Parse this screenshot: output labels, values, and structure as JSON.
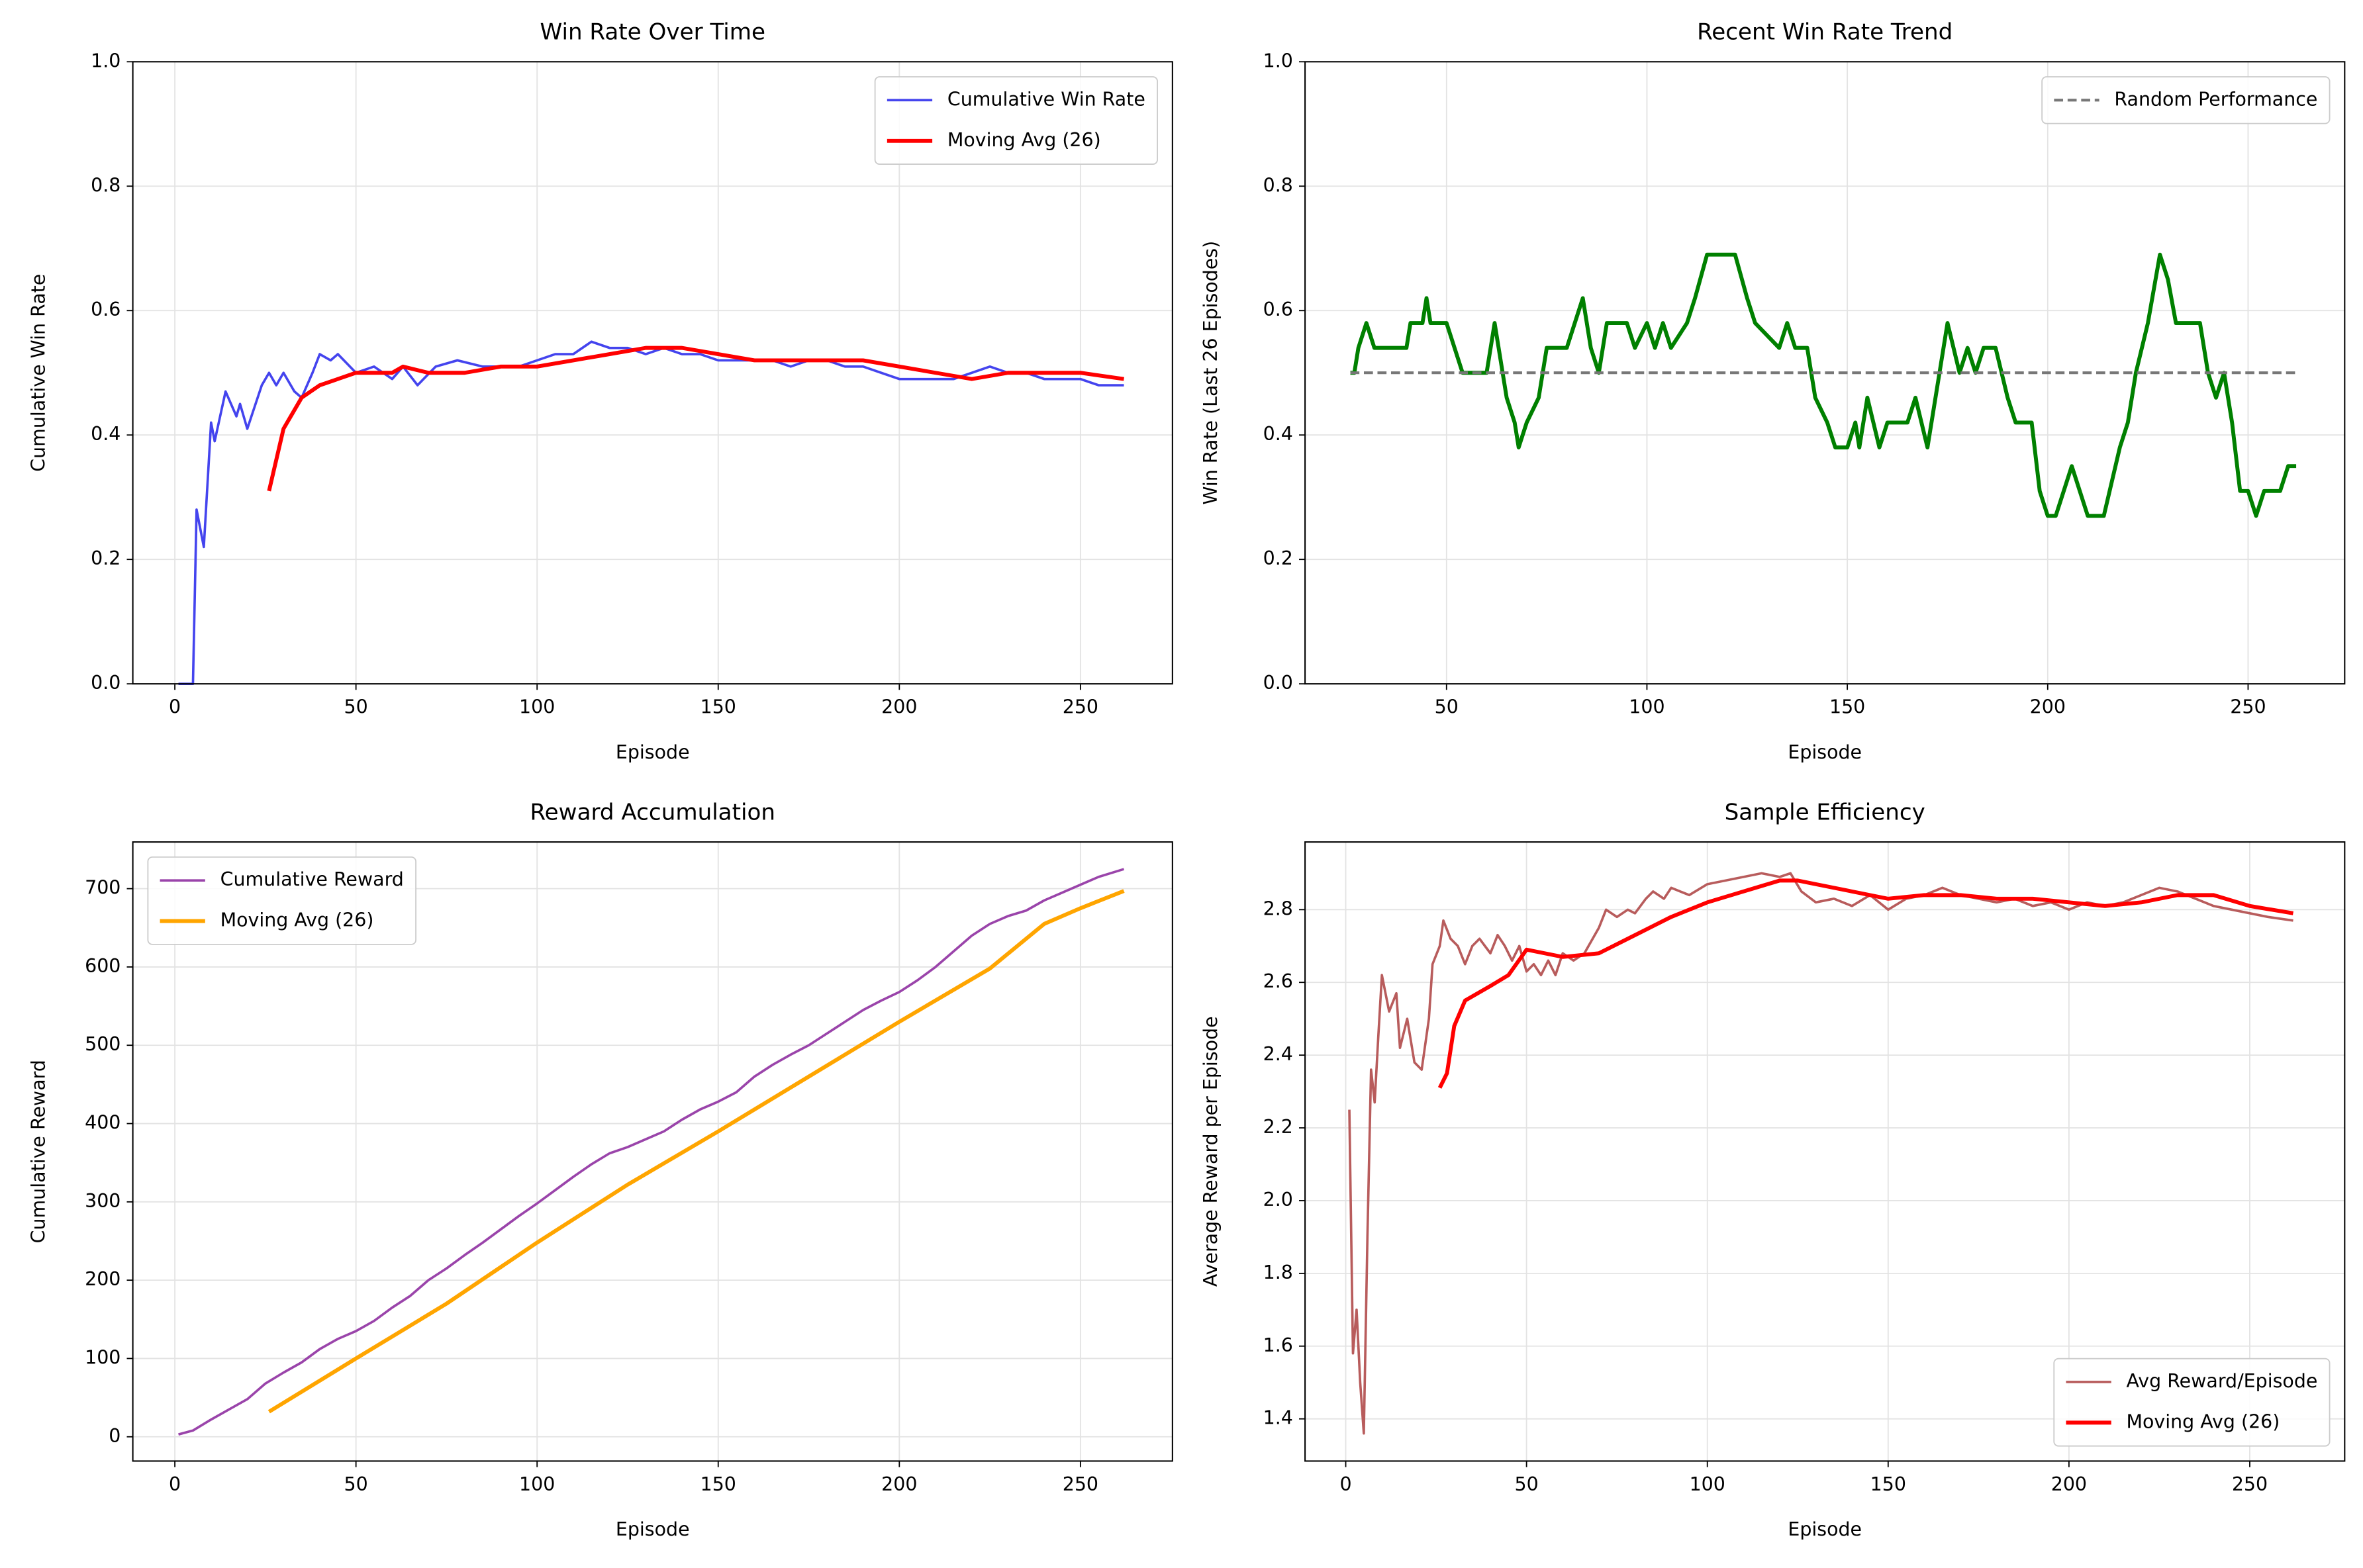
{
  "chart_data": [
    {
      "type": "line",
      "title": "Win Rate Over Time",
      "xlabel": "Episode",
      "ylabel": "Cumulative Win Rate",
      "xlim": [
        -11.6,
        275.4
      ],
      "ylim": [
        0,
        1
      ],
      "xticks": [
        0,
        50,
        100,
        150,
        200,
        250
      ],
      "yticks": [
        {
          "value": 0,
          "label": "0.0"
        },
        0.2,
        0.4,
        0.6,
        0.8,
        {
          "value": 1,
          "label": "1.0"
        }
      ],
      "grid": true,
      "legend": "upper right",
      "series": [
        {
          "name": "Cumulative Win Rate",
          "color": "#4444ee",
          "width": 1.6,
          "x": [
            1,
            5,
            6,
            8,
            10,
            11,
            14,
            17,
            18,
            20,
            24,
            26,
            28,
            30,
            33,
            35,
            38,
            40,
            43,
            45,
            50,
            55,
            60,
            63,
            67,
            72,
            78,
            85,
            90,
            95,
            100,
            105,
            110,
            115,
            120,
            125,
            130,
            135,
            140,
            145,
            150,
            155,
            160,
            165,
            170,
            175,
            180,
            185,
            190,
            195,
            200,
            205,
            210,
            215,
            220,
            225,
            230,
            235,
            240,
            245,
            250,
            255,
            262
          ],
          "values": [
            0,
            0,
            0.28,
            0.22,
            0.42,
            0.39,
            0.47,
            0.43,
            0.45,
            0.41,
            0.48,
            0.5,
            0.48,
            0.5,
            0.47,
            0.46,
            0.5,
            0.53,
            0.52,
            0.53,
            0.5,
            0.51,
            0.49,
            0.51,
            0.48,
            0.51,
            0.52,
            0.51,
            0.51,
            0.51,
            0.52,
            0.53,
            0.53,
            0.55,
            0.54,
            0.54,
            0.53,
            0.54,
            0.53,
            0.53,
            0.52,
            0.52,
            0.52,
            0.52,
            0.51,
            0.52,
            0.52,
            0.51,
            0.51,
            0.5,
            0.49,
            0.49,
            0.49,
            0.49,
            0.5,
            0.51,
            0.5,
            0.5,
            0.49,
            0.49,
            0.49,
            0.48,
            0.48
          ]
        },
        {
          "name": "Moving Avg (26)",
          "color": "#ff0000",
          "width": 2.6,
          "x": [
            26,
            30,
            35,
            40,
            45,
            50,
            55,
            60,
            63,
            70,
            80,
            90,
            100,
            110,
            120,
            130,
            140,
            150,
            160,
            170,
            180,
            190,
            200,
            210,
            220,
            230,
            240,
            250,
            262
          ],
          "values": [
            0.31,
            0.41,
            0.46,
            0.48,
            0.49,
            0.5,
            0.5,
            0.5,
            0.51,
            0.5,
            0.5,
            0.51,
            0.51,
            0.52,
            0.53,
            0.54,
            0.54,
            0.53,
            0.52,
            0.52,
            0.52,
            0.52,
            0.51,
            0.5,
            0.49,
            0.5,
            0.5,
            0.5,
            0.49
          ]
        }
      ]
    },
    {
      "type": "line",
      "title": "Recent Win Rate Trend",
      "xlabel": "Episode",
      "ylabel": "Win Rate (Last 26 Episodes)",
      "xlim": [
        14.7,
        274.1
      ],
      "ylim": [
        0,
        1
      ],
      "xticks": [
        50,
        100,
        150,
        200,
        250
      ],
      "yticks": [
        {
          "value": 0,
          "label": "0.0"
        },
        0.2,
        0.4,
        0.6,
        0.8,
        {
          "value": 1,
          "label": "1.0"
        }
      ],
      "grid": true,
      "legend": "upper right",
      "series": [
        {
          "color": "#008000",
          "width": 2.6,
          "x": [
            26,
            27,
            28,
            30,
            32,
            40,
            41,
            44,
            45,
            46,
            50,
            52,
            54,
            60,
            62,
            65,
            67,
            68,
            70,
            73,
            75,
            80,
            82,
            84,
            86,
            88,
            90,
            95,
            97,
            100,
            102,
            104,
            106,
            110,
            112,
            115,
            122,
            125,
            127,
            133,
            135,
            137,
            140,
            142,
            145,
            147,
            150,
            152,
            153,
            155,
            158,
            160,
            165,
            167,
            170,
            172,
            175,
            178,
            180,
            182,
            184,
            187,
            190,
            192,
            196,
            198,
            200,
            202,
            204,
            206,
            208,
            210,
            214,
            218,
            220,
            222,
            225,
            228,
            230,
            232,
            238,
            240,
            242,
            244,
            246,
            248,
            250,
            252,
            254,
            258,
            260,
            262
          ],
          "values": [
            0.5,
            0.5,
            0.54,
            0.58,
            0.54,
            0.54,
            0.58,
            0.58,
            0.62,
            0.58,
            0.58,
            0.54,
            0.5,
            0.5,
            0.58,
            0.46,
            0.42,
            0.38,
            0.42,
            0.46,
            0.54,
            0.54,
            0.58,
            0.62,
            0.54,
            0.5,
            0.58,
            0.58,
            0.54,
            0.58,
            0.54,
            0.58,
            0.54,
            0.58,
            0.62,
            0.69,
            0.69,
            0.62,
            0.58,
            0.54,
            0.58,
            0.54,
            0.54,
            0.46,
            0.42,
            0.38,
            0.38,
            0.42,
            0.38,
            0.46,
            0.38,
            0.42,
            0.42,
            0.46,
            0.38,
            0.46,
            0.58,
            0.5,
            0.54,
            0.5,
            0.54,
            0.54,
            0.46,
            0.42,
            0.42,
            0.31,
            0.27,
            0.27,
            0.31,
            0.35,
            0.31,
            0.27,
            0.27,
            0.38,
            0.42,
            0.5,
            0.58,
            0.69,
            0.65,
            0.58,
            0.58,
            0.5,
            0.46,
            0.5,
            0.42,
            0.31,
            0.31,
            0.27,
            0.31,
            0.31,
            0.35,
            0.35
          ]
        },
        {
          "name": "Random Performance",
          "color": "#777777",
          "width": 1.8,
          "dash": true,
          "x": [
            26,
            262
          ],
          "values": [
            0.5,
            0.5
          ]
        }
      ]
    },
    {
      "type": "line",
      "title": "Reward Accumulation",
      "xlabel": "Episode",
      "ylabel": "Cumulative Reward",
      "xlim": [
        -11.6,
        275.4
      ],
      "ylim": [
        -31,
        759.6
      ],
      "xticks": [
        0,
        50,
        100,
        150,
        200,
        250
      ],
      "yticks": [
        0,
        100,
        200,
        300,
        400,
        500,
        600,
        700
      ],
      "grid": true,
      "legend": "upper left",
      "series": [
        {
          "name": "Cumulative Reward",
          "color": "#9a44aa",
          "width": 1.6,
          "x": [
            1,
            5,
            10,
            15,
            20,
            25,
            30,
            35,
            40,
            45,
            50,
            55,
            60,
            65,
            70,
            75,
            80,
            85,
            90,
            95,
            100,
            105,
            110,
            115,
            120,
            125,
            130,
            135,
            140,
            145,
            150,
            155,
            160,
            165,
            170,
            175,
            180,
            185,
            190,
            195,
            200,
            205,
            210,
            215,
            220,
            225,
            230,
            235,
            240,
            245,
            250,
            255,
            262
          ],
          "values": [
            3,
            8,
            22,
            35,
            48,
            68,
            82,
            95,
            112,
            125,
            135,
            148,
            165,
            180,
            200,
            215,
            232,
            248,
            265,
            282,
            298,
            315,
            332,
            348,
            362,
            370,
            380,
            390,
            405,
            418,
            428,
            440,
            460,
            475,
            488,
            500,
            515,
            530,
            545,
            557,
            568,
            583,
            600,
            620,
            640,
            655,
            665,
            672,
            685,
            695,
            705,
            715,
            725
          ]
        },
        {
          "name": "Moving Avg (26)",
          "color": "#ffa500",
          "width": 2.6,
          "x": [
            26,
            50,
            75,
            100,
            125,
            150,
            175,
            200,
            225,
            240,
            250,
            262
          ],
          "values": [
            32,
            100,
            170,
            248,
            322,
            390,
            460,
            530,
            598,
            655,
            675,
            697
          ]
        }
      ]
    },
    {
      "type": "line",
      "title": "Sample Efficiency",
      "xlabel": "Episode",
      "ylabel": "Average Reward per Episode",
      "xlim": [
        -11.25,
        276.25
      ],
      "ylim": [
        1.284,
        2.986
      ],
      "xticks": [
        0,
        50,
        100,
        150,
        200,
        250
      ],
      "yticks": [
        1.4,
        1.6,
        1.8,
        {
          "value": 2,
          "label": "2.0"
        },
        2.2,
        2.4,
        2.6,
        2.8
      ],
      "grid": true,
      "legend": "lower right",
      "series": [
        {
          "name": "Avg Reward/Episode",
          "color": "#b85c5c",
          "width": 1.6,
          "x": [
            1,
            2,
            3,
            4,
            5,
            6,
            7,
            8,
            9,
            10,
            12,
            14,
            15,
            17,
            19,
            21,
            23,
            24,
            26,
            27,
            29,
            31,
            33,
            35,
            37,
            40,
            42,
            44,
            46,
            48,
            50,
            52,
            54,
            56,
            58,
            60,
            63,
            66,
            70,
            72,
            75,
            78,
            80,
            83,
            85,
            88,
            90,
            95,
            100,
            105,
            110,
            115,
            120,
            123,
            126,
            130,
            135,
            140,
            145,
            150,
            155,
            160,
            165,
            170,
            175,
            180,
            185,
            190,
            195,
            200,
            205,
            210,
            215,
            220,
            225,
            230,
            235,
            240,
            245,
            250,
            255,
            262
          ],
          "values": [
            2.25,
            1.58,
            1.7,
            1.5,
            1.36,
            1.9,
            2.36,
            2.27,
            2.45,
            2.62,
            2.52,
            2.57,
            2.42,
            2.5,
            2.38,
            2.36,
            2.5,
            2.65,
            2.7,
            2.77,
            2.72,
            2.7,
            2.65,
            2.7,
            2.72,
            2.68,
            2.73,
            2.7,
            2.66,
            2.7,
            2.63,
            2.65,
            2.62,
            2.66,
            2.62,
            2.68,
            2.66,
            2.68,
            2.75,
            2.8,
            2.78,
            2.8,
            2.79,
            2.83,
            2.85,
            2.83,
            2.86,
            2.84,
            2.87,
            2.88,
            2.89,
            2.9,
            2.89,
            2.9,
            2.85,
            2.82,
            2.83,
            2.81,
            2.84,
            2.8,
            2.83,
            2.84,
            2.86,
            2.84,
            2.83,
            2.82,
            2.83,
            2.81,
            2.82,
            2.8,
            2.82,
            2.81,
            2.82,
            2.84,
            2.86,
            2.85,
            2.83,
            2.81,
            2.8,
            2.79,
            2.78,
            2.77
          ]
        },
        {
          "name": "Moving Avg (26)",
          "color": "#ff0000",
          "width": 2.6,
          "x": [
            26,
            28,
            30,
            33,
            40,
            45,
            50,
            55,
            60,
            70,
            80,
            90,
            100,
            110,
            120,
            125,
            130,
            140,
            150,
            160,
            170,
            180,
            190,
            200,
            210,
            220,
            230,
            240,
            250,
            262
          ],
          "values": [
            2.31,
            2.35,
            2.48,
            2.55,
            2.59,
            2.62,
            2.69,
            2.68,
            2.67,
            2.68,
            2.73,
            2.78,
            2.82,
            2.85,
            2.88,
            2.88,
            2.87,
            2.85,
            2.83,
            2.84,
            2.84,
            2.83,
            2.83,
            2.82,
            2.81,
            2.82,
            2.84,
            2.84,
            2.81,
            2.79
          ]
        }
      ]
    }
  ]
}
